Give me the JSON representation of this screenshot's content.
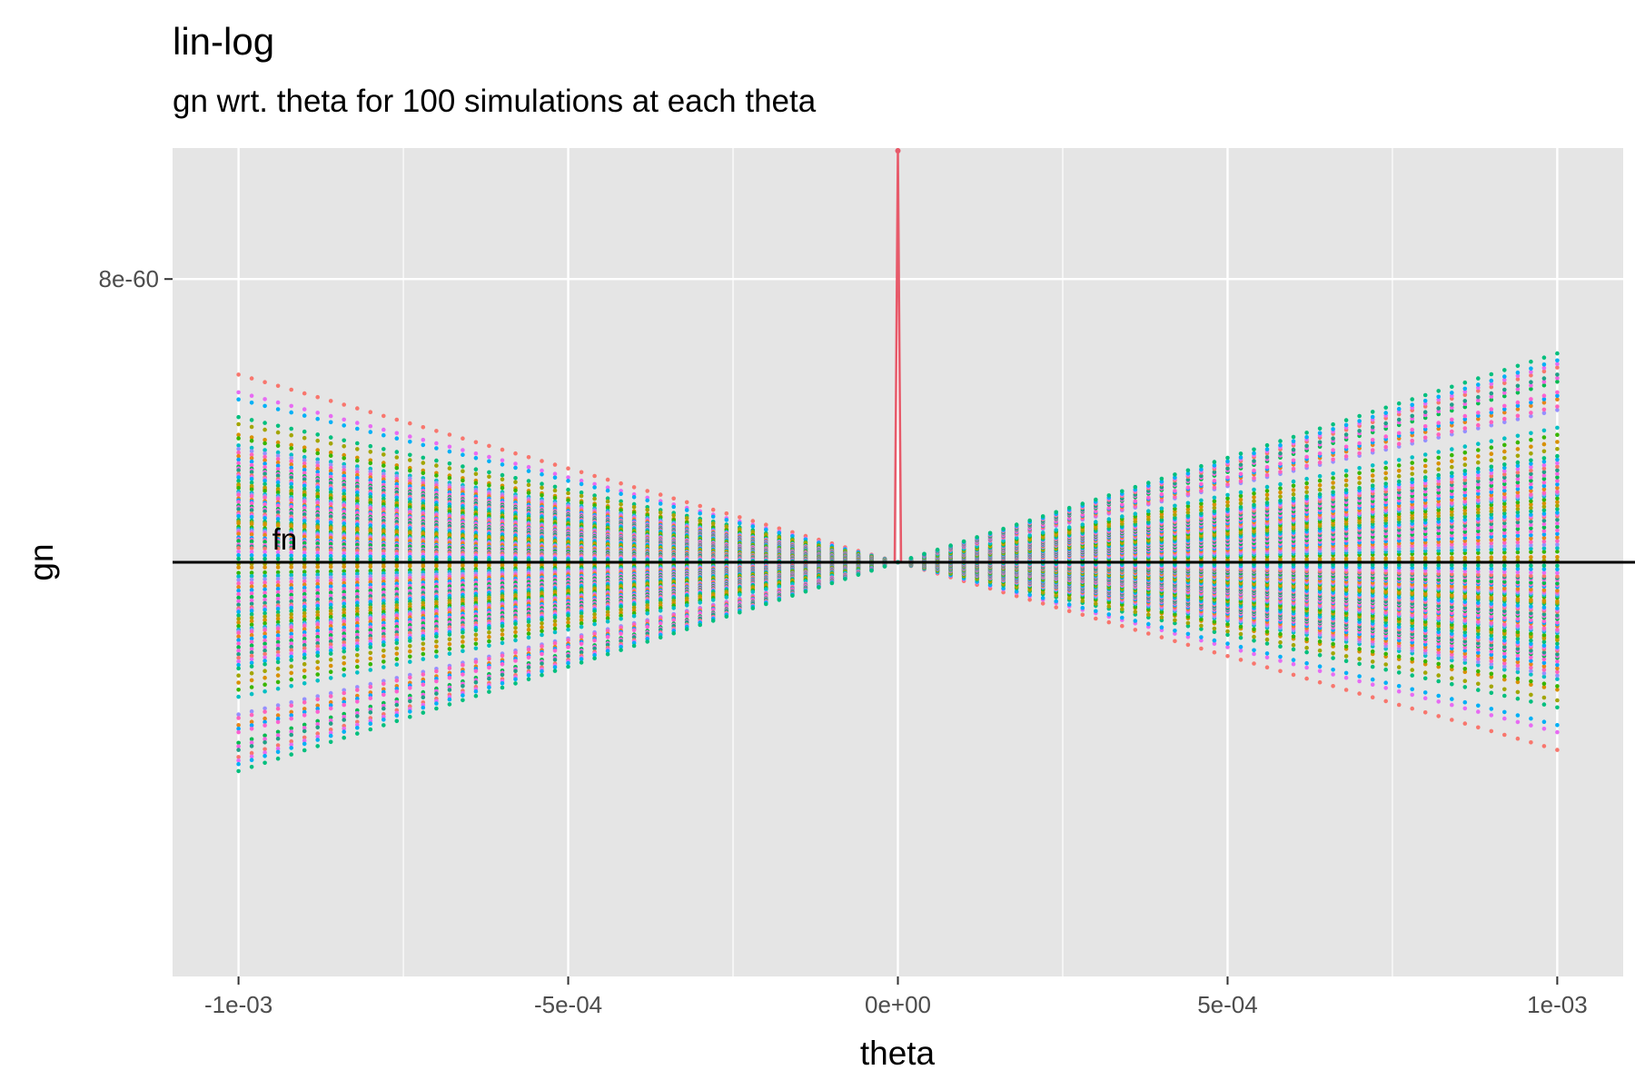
{
  "chart_data": {
    "type": "scatter",
    "title": "lin-log",
    "subtitle": "gn wrt. theta for 100 simulations at each theta",
    "xlabel": "theta",
    "ylabel": "gn",
    "xlim": [
      -0.0011,
      0.0011
    ],
    "x_ticks": [
      {
        "value": -0.001,
        "label": "-1e-03"
      },
      {
        "value": -0.0005,
        "label": "-5e-04"
      },
      {
        "value": 0,
        "label": "0e+00"
      },
      {
        "value": 0.0005,
        "label": "5e-04"
      },
      {
        "value": 0.001,
        "label": "1e-03"
      }
    ],
    "y_ticks": [
      {
        "value": 8e-60,
        "label": "8e-60"
      }
    ],
    "ylim": [
      -1.17e-59,
      1.17e-59
    ],
    "grid": true,
    "legend": "none",
    "reference_line": {
      "y": 0,
      "label": "fn",
      "label_x": -0.00093
    },
    "spike": {
      "x": 0,
      "y_top": 1.17e-59,
      "color": "#e75a6a"
    },
    "x_range": [
      -0.001,
      0.001
    ],
    "points_per_series": 101,
    "series_color_palette": [
      "#f8766d",
      "#e76bf3",
      "#00b0f6",
      "#00bf7d",
      "#a3a500",
      "#d89000",
      "#39b600",
      "#00bfc4",
      "#9590ff",
      "#ff62bc",
      "#e7861b",
      "#00a5ff",
      "#fd61d1",
      "#00bb4e",
      "#f564e3",
      "#1fa187"
    ],
    "series_slopes": [
      -5.3e-57,
      -4.8e-57,
      -4.6e-57,
      -4.1e-57,
      -3.9e-57,
      -3.6e-57,
      -3.5e-57,
      -3.3e-57,
      -3.2e-57,
      -3.1e-57,
      -3e-57,
      -2.9e-57,
      -2.8e-57,
      -2.7e-57,
      -2.65e-57,
      -2.6e-57,
      -2.5e-57,
      -2.45e-57,
      -2.4e-57,
      -2.3e-57,
      -2.2e-57,
      -2.15e-57,
      -2.1e-57,
      -2e-57,
      -1.95e-57,
      -1.9e-57,
      -1.8e-57,
      -1.75e-57,
      -1.7e-57,
      -1.6e-57,
      -1.55e-57,
      -1.5e-57,
      -1.4e-57,
      -1.35e-57,
      -1.3e-57,
      -1.2e-57,
      -1.15e-57,
      -1.1e-57,
      -1e-57,
      -9.5e-58,
      -9e-58,
      -8.5e-58,
      -8e-58,
      -7e-58,
      -6.5e-58,
      -6e-58,
      -5e-58,
      -4.5e-58,
      -4e-58,
      -3e-58,
      -2e-58,
      -1e-58,
      5e-59,
      1.5e-58,
      3e-58,
      4e-58,
      5e-58,
      6e-58,
      7e-58,
      8e-58,
      9e-58,
      1e-57,
      1.1e-57,
      1.2e-57,
      1.3e-57,
      1.35e-57,
      1.4e-57,
      1.5e-57,
      1.6e-57,
      1.7e-57,
      1.8e-57,
      1.9e-57,
      1.95e-57,
      2e-57,
      2.1e-57,
      2.2e-57,
      2.3e-57,
      2.4e-57,
      2.5e-57,
      2.6e-57,
      2.7e-57,
      2.8e-57,
      2.9e-57,
      3e-57,
      3.2e-57,
      3.4e-57,
      3.6e-57,
      3.8e-57,
      4.3e-57,
      4.4e-57,
      4.6e-57,
      4.7e-57,
      4.8e-57,
      5.1e-57,
      5.2e-57,
      5.3e-57,
      5.5e-57,
      5.6e-57,
      5.7e-57,
      5.9e-57
    ]
  }
}
